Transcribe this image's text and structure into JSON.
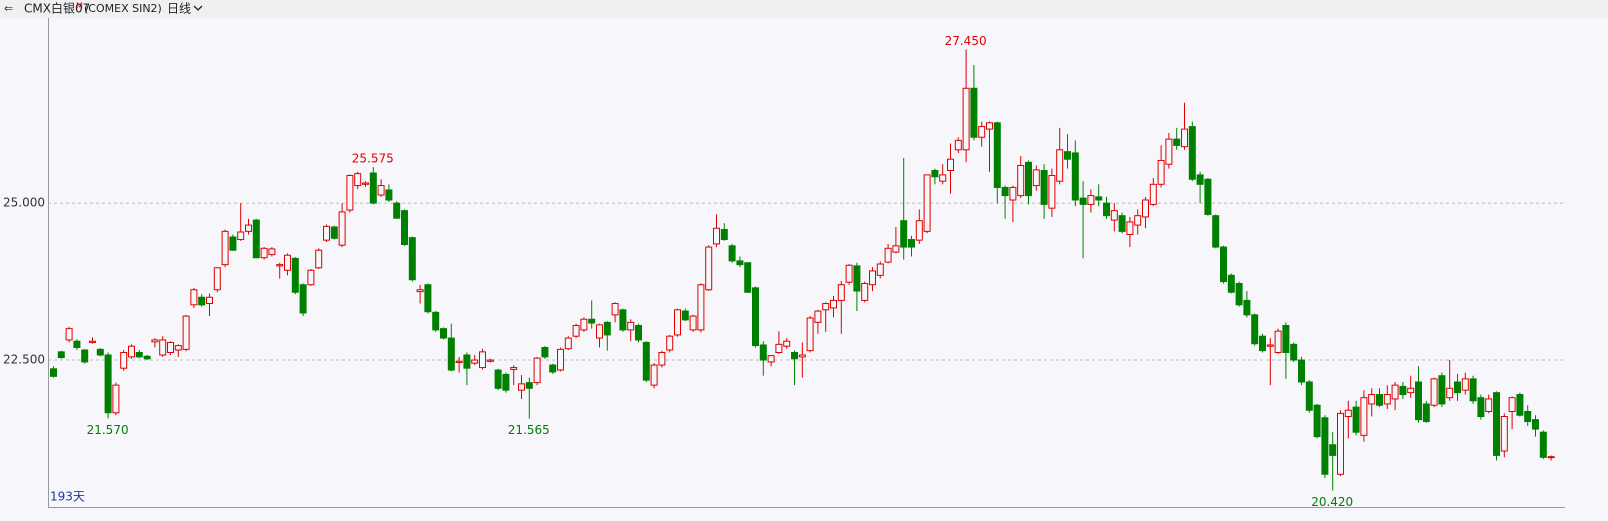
{
  "chart_data": {
    "type": "candlestick",
    "title": "CMX白银07",
    "title_mark": "M",
    "subtitle": "(COMEX SIN2)",
    "period": "日线",
    "footer": "193天",
    "up_color": "#e00000",
    "down_color": "#008000",
    "grid": true,
    "ylim": [
      20.19,
      27.95
    ],
    "yticks": [
      {
        "value": 22.5,
        "label": "22.500"
      },
      {
        "value": 25,
        "label": "25.000"
      }
    ],
    "annotations": [
      {
        "value": 21.57,
        "label": "21.570"
      },
      {
        "value": 25.575,
        "label": "25.575"
      },
      {
        "value": 21.565,
        "label": "21.565"
      },
      {
        "value": 27.45,
        "label": "27.450"
      },
      {
        "value": 20.42,
        "label": "20.420"
      }
    ],
    "open": [
      22.36,
      22.63,
      22.82,
      22.8,
      22.66,
      22.78,
      22.67,
      22.58,
      21.66,
      22.37,
      22.55,
      22.62,
      22.56,
      22.79,
      22.58,
      22.62,
      22.66,
      22.67,
      23.38,
      23.5,
      23.4,
      23.62,
      24.02,
      24.46,
      24.42,
      24.55,
      24.73,
      24.13,
      24.18,
      24.0,
      23.93,
      24.12,
      23.7,
      23.7,
      23.97,
      24.41,
      24.62,
      24.33,
      24.89,
      25.28,
      25.3,
      25.48,
      25.13,
      25.21,
      25.0,
      24.88,
      24.45,
      23.59,
      23.7,
      23.26,
      23.0,
      22.85,
      22.46,
      22.58,
      22.45,
      22.38,
      22.48,
      22.34,
      22.27,
      22.35,
      22.02,
      22.14,
      22.14,
      22.7,
      22.42,
      22.34,
      22.68,
      22.88,
      22.98,
      23.15,
      22.85,
      23.1,
      23.22,
      23.3,
      22.98,
      23.05,
      22.78,
      22.1,
      22.42,
      22.66,
      22.9,
      23.28,
      22.98,
      22.98,
      23.62,
      24.35,
      24.58,
      24.32,
      24.08,
      24.05,
      23.65,
      22.74,
      22.47,
      22.62,
      22.72,
      22.62,
      22.55,
      22.65,
      23.1,
      23.3,
      23.33,
      23.45,
      23.74,
      24.0,
      23.45,
      23.7,
      23.85,
      24.06,
      24.22,
      24.72,
      24.42,
      24.41,
      24.55,
      25.52,
      25.35,
      25.52,
      25.85,
      25.85,
      26.83,
      26.05,
      26.18,
      26.28,
      25.25,
      25.05,
      25.12,
      25.65,
      25.28,
      25.52,
      24.92,
      25.35,
      25.82,
      25.8,
      25.08,
      24.98,
      25.1,
      25.0,
      24.73,
      24.8,
      24.5,
      24.65,
      24.78,
      24.98,
      25.3,
      25.62,
      26.02,
      25.9,
      26.22,
      25.45,
      25.38,
      24.8,
      24.3,
      23.85,
      23.72,
      23.45,
      23.22,
      22.88,
      22.72,
      22.62,
      23.05,
      22.75,
      22.5,
      22.15,
      21.78,
      21.58,
      21.15,
      20.68,
      21.6,
      21.75,
      21.3,
      21.8,
      21.95,
      21.8,
      21.88,
      22.08,
      21.98,
      22.15,
      21.8,
      21.78,
      22.25,
      21.9,
      22.15,
      22.02,
      22.2,
      21.9,
      21.68,
      21.98,
      21.05,
      21.68,
      21.95,
      21.68,
      21.55,
      21.35,
      20.95
    ],
    "high": [
      22.4,
      22.65,
      23.03,
      22.83,
      22.67,
      22.86,
      22.69,
      22.62,
      22.14,
      22.66,
      22.75,
      22.66,
      22.58,
      22.85,
      22.88,
      22.8,
      22.75,
      23.22,
      23.65,
      23.55,
      23.56,
      23.98,
      24.58,
      24.5,
      25.0,
      24.75,
      24.75,
      24.3,
      24.3,
      24.05,
      24.2,
      24.14,
      23.72,
      23.95,
      24.28,
      24.66,
      24.64,
      25.0,
      25.46,
      25.5,
      25.35,
      25.575,
      25.38,
      25.3,
      25.03,
      24.9,
      24.47,
      23.7,
      23.72,
      23.28,
      23.02,
      23.08,
      22.55,
      22.62,
      22.58,
      22.68,
      22.52,
      22.36,
      22.3,
      22.42,
      22.26,
      22.22,
      22.55,
      22.72,
      22.44,
      22.7,
      22.88,
      23.08,
      23.18,
      23.45,
      23.08,
      23.12,
      23.42,
      23.32,
      23.15,
      23.08,
      22.8,
      22.45,
      22.65,
      22.9,
      23.32,
      23.32,
      23.22,
      23.72,
      24.33,
      24.82,
      24.68,
      24.35,
      24.15,
      24.06,
      23.67,
      22.8,
      22.55,
      22.96,
      22.85,
      22.65,
      22.78,
      23.2,
      23.3,
      23.42,
      23.52,
      23.76,
      24.03,
      24.05,
      23.75,
      23.98,
      24.07,
      24.35,
      24.62,
      25.72,
      24.48,
      24.9,
      25.45,
      25.55,
      25.62,
      25.95,
      26.05,
      27.45,
      27.2,
      26.3,
      26.3,
      26.3,
      25.28,
      25.28,
      25.75,
      25.68,
      25.6,
      25.62,
      25.55,
      26.2,
      26.1,
      26.0,
      25.35,
      25.22,
      25.3,
      25.1,
      25.0,
      24.85,
      24.78,
      24.9,
      25.1,
      25.4,
      25.92,
      26.12,
      26.2,
      26.6,
      26.3,
      25.5,
      25.4,
      24.82,
      24.32,
      23.88,
      23.75,
      23.6,
      23.24,
      22.92,
      22.85,
      23.0,
      23.1,
      22.78,
      22.55,
      22.18,
      21.8,
      21.62,
      21.35,
      21.7,
      21.85,
      21.85,
      22.02,
      22.05,
      22.05,
      22.1,
      22.15,
      22.15,
      22.25,
      22.4,
      21.85,
      22.22,
      22.3,
      22.5,
      22.28,
      22.3,
      22.25,
      21.95,
      21.95,
      22.0,
      21.65,
      21.92,
      21.98,
      21.78,
      21.62,
      21.38,
      20.98
    ],
    "low": [
      22.22,
      22.52,
      22.78,
      22.66,
      22.44,
      22.76,
      22.56,
      21.57,
      21.62,
      22.33,
      22.52,
      22.53,
      22.5,
      22.7,
      22.55,
      22.58,
      22.55,
      22.64,
      23.33,
      23.35,
      23.2,
      23.58,
      23.98,
      24.24,
      24.4,
      24.5,
      24.12,
      24.1,
      24.15,
      23.8,
      23.85,
      23.55,
      23.2,
      23.68,
      23.95,
      24.38,
      24.42,
      24.3,
      24.85,
      25.22,
      25.26,
      24.98,
      25.1,
      25.02,
      24.75,
      24.32,
      23.75,
      23.4,
      23.24,
      22.95,
      22.83,
      22.32,
      22.3,
      22.1,
      22.42,
      22.35,
      22.46,
      22.02,
      21.98,
      22.1,
      21.88,
      21.565,
      22.1,
      22.52,
      22.28,
      22.32,
      22.66,
      22.85,
      22.95,
      23.0,
      22.7,
      22.65,
      23.1,
      22.95,
      22.8,
      22.78,
      22.15,
      22.05,
      22.38,
      22.62,
      22.87,
      23.12,
      22.95,
      22.94,
      23.6,
      24.3,
      24.4,
      24.05,
      23.98,
      23.57,
      22.7,
      22.25,
      22.4,
      22.6,
      22.68,
      22.1,
      22.22,
      22.62,
      22.92,
      22.95,
      23.18,
      22.92,
      23.7,
      23.28,
      23.42,
      23.6,
      23.8,
      24.04,
      24.2,
      24.1,
      24.15,
      24.35,
      24.52,
      25.3,
      25.3,
      25.15,
      25.8,
      25.65,
      26.0,
      25.9,
      25.5,
      25.0,
      24.75,
      24.7,
      25.08,
      24.98,
      25.2,
      24.75,
      24.78,
      25.3,
      25.55,
      24.95,
      24.12,
      24.85,
      24.95,
      24.75,
      24.55,
      24.52,
      24.3,
      24.5,
      24.6,
      24.95,
      25.25,
      25.55,
      25.85,
      25.85,
      25.35,
      25.0,
      24.8,
      24.28,
      23.72,
      23.56,
      23.35,
      23.18,
      22.73,
      22.62,
      22.1,
      22.6,
      22.2,
      22.47,
      22.1,
      21.66,
      21.25,
      20.62,
      20.42,
      20.65,
      21.25,
      21.3,
      21.2,
      21.6,
      21.75,
      21.72,
      21.7,
      21.88,
      21.9,
      21.5,
      21.5,
      21.75,
      21.75,
      21.85,
      21.85,
      21.95,
      21.8,
      21.55,
      21.65,
      20.9,
      20.95,
      21.4,
      21.6,
      21.45,
      21.28,
      20.92,
      20.9
    ],
    "close": [
      22.24,
      22.54,
      23.0,
      22.7,
      22.47,
      22.8,
      22.58,
      21.66,
      22.1,
      22.62,
      22.72,
      22.55,
      22.52,
      22.82,
      22.82,
      22.78,
      22.73,
      23.2,
      23.62,
      23.38,
      23.5,
      23.97,
      24.55,
      24.25,
      24.54,
      24.65,
      24.13,
      24.28,
      24.27,
      24.02,
      24.17,
      23.58,
      23.25,
      23.93,
      24.25,
      24.63,
      24.44,
      24.86,
      25.44,
      25.47,
      25.32,
      25.0,
      25.28,
      25.05,
      24.76,
      24.34,
      23.78,
      23.62,
      23.27,
      22.98,
      22.85,
      22.34,
      22.48,
      22.37,
      22.5,
      22.63,
      22.5,
      22.05,
      22.02,
      22.38,
      22.12,
      22.05,
      22.53,
      22.55,
      22.31,
      22.67,
      22.85,
      23.05,
      23.15,
      23.09,
      23.06,
      22.9,
      23.4,
      22.98,
      23.1,
      22.82,
      22.18,
      22.42,
      22.62,
      22.88,
      23.3,
      23.14,
      23.2,
      23.7,
      24.3,
      24.6,
      24.42,
      24.08,
      24.02,
      23.58,
      22.73,
      22.5,
      22.57,
      22.75,
      22.8,
      22.52,
      22.58,
      23.17,
      23.28,
      23.4,
      23.45,
      23.7,
      24.01,
      23.6,
      23.72,
      23.92,
      24.03,
      24.28,
      24.32,
      24.3,
      24.3,
      24.72,
      25.45,
      25.42,
      25.45,
      25.7,
      26.0,
      26.83,
      26.05,
      26.22,
      26.28,
      25.25,
      25.12,
      25.25,
      25.6,
      25.12,
      25.53,
      24.98,
      25.44,
      25.85,
      25.7,
      25.05,
      24.98,
      25.12,
      25.05,
      24.8,
      24.88,
      24.55,
      24.7,
      24.8,
      25.05,
      25.3,
      25.68,
      26.02,
      25.92,
      26.18,
      25.38,
      25.3,
      24.82,
      24.3,
      23.75,
      23.58,
      23.38,
      23.22,
      22.76,
      22.65,
      22.74,
      22.96,
      22.62,
      22.5,
      22.15,
      21.7,
      21.28,
      20.68,
      20.98,
      21.65,
      21.7,
      21.35,
      21.9,
      21.95,
      21.78,
      21.95,
      22.1,
      21.95,
      22.05,
      21.55,
      21.52,
      22.2,
      21.8,
      22.05,
      21.98,
      22.2,
      21.85,
      21.6,
      21.88,
      20.98,
      21.6,
      21.9,
      21.62,
      21.52,
      21.4,
      20.95,
      20.96
    ]
  }
}
